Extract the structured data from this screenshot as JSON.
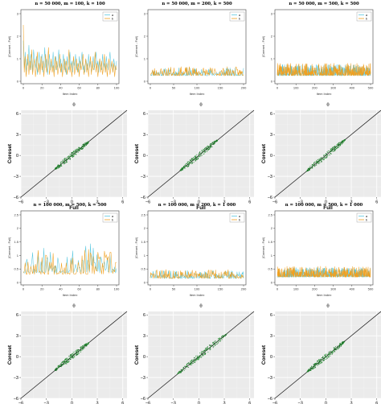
{
  "chart_data": [
    {
      "type": "line",
      "title": "n = 50 000, m = 100, k = 100",
      "xlabel": "Item Index",
      "ylabel": "|Coreset - Full|",
      "xlim": [
        0,
        100
      ],
      "ylim": [
        0,
        3
      ],
      "xticks": [
        "0",
        "20",
        "40",
        "60",
        "80",
        "100"
      ],
      "yticks": [
        "0",
        "1",
        "2",
        "3"
      ],
      "legend": "top-right",
      "series": [
        {
          "name": "a",
          "color": "#5bc8e0",
          "values": [
            1.8,
            0.6,
            1.3,
            0.4,
            1.0,
            0.7,
            1.6,
            0.5,
            1.2,
            0.8,
            0.4,
            1.4,
            0.9,
            0.6,
            1.1,
            0.3,
            0.8,
            1.3,
            0.5,
            0.9,
            1.2,
            0.4,
            0.7,
            1.5,
            0.6,
            1.0,
            0.3,
            0.8,
            1.2,
            0.5,
            0.9,
            0.6,
            1.3,
            0.4,
            0.8,
            1.1,
            0.5,
            0.7,
            1.4,
            0.6,
            1.0,
            0.4,
            0.8,
            1.2,
            0.5,
            0.9,
            0.3,
            1.1,
            0.7,
            0.5,
            1.3,
            0.6,
            0.9,
            0.4,
            1.0,
            0.7,
            1.2,
            0.5,
            0.8,
            0.4,
            1.1,
            0.6,
            0.9,
            1.3,
            0.5,
            0.7,
            0.4,
            1.0,
            0.8,
            0.5,
            1.2,
            0.6,
            0.9,
            0.4,
            0.7,
            1.1,
            0.5,
            0.8,
            1.3,
            0.6,
            0.9,
            0.4,
            1.0,
            0.7,
            0.5,
            1.2,
            0.6,
            0.8,
            0.4,
            1.1,
            0.7,
            0.5,
            0.9,
            1.3,
            0.6,
            0.8,
            0.4,
            1.0,
            0.7,
            0.5,
            0.9
          ]
        },
        {
          "name": "b",
          "color": "#f0a020",
          "values": [
            2.5,
            0.4,
            1.1,
            0.2,
            0.7,
            1.2,
            0.3,
            0.9,
            0.5,
            1.4,
            0.3,
            0.7,
            1.0,
            0.2,
            0.6,
            1.3,
            0.4,
            0.8,
            0.3,
            1.1,
            0.5,
            0.9,
            0.2,
            0.7,
            1.2,
            0.4,
            0.8,
            1.5,
            0.3,
            0.6,
            1.0,
            0.4,
            0.7,
            0.2,
            1.1,
            0.5,
            0.9,
            0.3,
            0.6,
            1.2,
            0.4,
            0.8,
            0.2,
            0.7,
            1.0,
            0.4,
            0.9,
            0.3,
            0.6,
            1.4,
            0.4,
            0.8,
            0.2,
            0.7,
            1.1,
            0.3,
            0.6,
            1.0,
            0.4,
            0.8,
            0.2,
            0.9,
            0.5,
            0.7,
            1.2,
            0.3,
            0.6,
            1.0,
            0.4,
            0.8,
            0.2,
            0.7,
            1.1,
            0.3,
            0.9,
            0.5,
            0.6,
            1.3,
            0.4,
            0.8,
            0.2,
            0.7,
            1.0,
            0.4,
            0.9,
            0.3,
            0.6,
            1.2,
            0.4,
            0.8,
            0.2,
            0.7,
            1.0,
            0.3,
            0.6,
            0.9,
            0.4,
            0.8,
            0.2,
            0.7,
            0.5
          ]
        }
      ]
    },
    {
      "type": "line",
      "title": "n = 50 000, m = 200, k = 500",
      "xlabel": "Item Index",
      "ylabel": "|Coreset - Full|",
      "xlim": [
        0,
        200
      ],
      "ylim": [
        0,
        3
      ],
      "xticks": [
        "0",
        "50",
        "100",
        "150",
        "200"
      ],
      "yticks": [
        "0",
        "1",
        "2",
        "3"
      ],
      "legend": "top-right",
      "series": [
        {
          "name": "a",
          "color": "#5bc8e0",
          "seed": 11,
          "base": 0.25,
          "amp": 0.35,
          "n": 201
        },
        {
          "name": "b",
          "color": "#f0a020",
          "seed": 23,
          "base": 0.25,
          "amp": 0.4,
          "n": 201
        }
      ]
    },
    {
      "type": "line",
      "title": "n = 50 000, m = 500, k = 500",
      "xlabel": "Item Index",
      "ylabel": "|Coreset - Full|",
      "xlim": [
        0,
        500
      ],
      "ylim": [
        0,
        3
      ],
      "xticks": [
        "0",
        "100",
        "200",
        "300",
        "400",
        "500"
      ],
      "yticks": [
        "0",
        "1",
        "2",
        "3"
      ],
      "legend": "top-right",
      "series": [
        {
          "name": "a",
          "color": "#5bc8e0",
          "seed": 37,
          "base": 0.25,
          "amp": 0.5,
          "n": 501
        },
        {
          "name": "b",
          "color": "#f0a020",
          "seed": 41,
          "base": 0.25,
          "amp": 0.55,
          "n": 501
        }
      ]
    },
    {
      "type": "scatter",
      "title": "θ",
      "xlabel": "Full",
      "ylabel": "Coreset",
      "xlim": [
        -6,
        6.5
      ],
      "ylim": [
        -6,
        6.5
      ],
      "xticks": [
        "−6",
        "−3",
        "0",
        "3",
        "6"
      ],
      "yticks": [
        "−6",
        "−3",
        "0",
        "3",
        "6"
      ],
      "grid": true,
      "range": [
        -2.0,
        2.0
      ]
    },
    {
      "type": "scatter",
      "title": "θ",
      "xlabel": "Full",
      "ylabel": "Coreset",
      "xlim": [
        -6,
        6.5
      ],
      "ylim": [
        -6,
        6.5
      ],
      "xticks": [
        "−6",
        "−3",
        "0",
        "3",
        "6"
      ],
      "yticks": [
        "−6",
        "−3",
        "0",
        "3",
        "6"
      ],
      "grid": true,
      "range": [
        -2.2,
        2.2
      ]
    },
    {
      "type": "scatter",
      "title": "θ",
      "xlabel": "Full",
      "ylabel": "Coreset",
      "xlim": [
        -6,
        6.5
      ],
      "ylim": [
        -6,
        6.5
      ],
      "xticks": [
        "−6",
        "−3",
        "0",
        "3",
        "6"
      ],
      "yticks": [
        "−6",
        "−3",
        "0",
        "3",
        "6"
      ],
      "grid": true,
      "range": [
        -2.3,
        2.3
      ]
    },
    {
      "type": "line",
      "title": "n = 100 000, m = 500, k = 500",
      "xlabel": "Item Index",
      "ylabel": "|Coreset - Full|",
      "xlim": [
        0,
        100
      ],
      "ylim": [
        0,
        2.5
      ],
      "xticks": [
        "0",
        "20",
        "40",
        "60",
        "80",
        "100"
      ],
      "yticks": [
        "0",
        "0.5",
        "1",
        "1.5",
        "2",
        "2.5"
      ],
      "legend": "top-right",
      "series": [
        {
          "name": "a",
          "color": "#5bc8e0",
          "seed": 53,
          "base": 0.35,
          "amp": 1.1,
          "n": 101
        },
        {
          "name": "b",
          "color": "#f0a020",
          "seed": 67,
          "base": 0.3,
          "amp": 0.95,
          "n": 101
        }
      ]
    },
    {
      "type": "line",
      "title": "n = 100 000, m = 200, k = 1 000",
      "xlabel": "Item Index",
      "ylabel": "|Coreset - Full|",
      "xlim": [
        0,
        200
      ],
      "ylim": [
        0,
        2.5
      ],
      "xticks": [
        "0",
        "50",
        "100",
        "150",
        "200"
      ],
      "yticks": [
        "0",
        "0.5",
        "1",
        "1.5",
        "2",
        "2.5"
      ],
      "legend": "top-right",
      "series": [
        {
          "name": "a",
          "color": "#5bc8e0",
          "seed": 71,
          "base": 0.15,
          "amp": 0.3,
          "n": 201
        },
        {
          "name": "b",
          "color": "#f0a020",
          "seed": 83,
          "base": 0.15,
          "amp": 0.35,
          "n": 201
        }
      ]
    },
    {
      "type": "line",
      "title": "n = 100 000, m = 500, k = 1 000",
      "xlabel": "Item Index",
      "ylabel": "|Coreset - Full|",
      "xlim": [
        0,
        500
      ],
      "ylim": [
        0,
        2.5
      ],
      "xticks": [
        "0",
        "100",
        "200",
        "300",
        "400",
        "500"
      ],
      "yticks": [
        "0",
        "0.5",
        "1",
        "1.5",
        "2",
        "2.5"
      ],
      "legend": "top-right",
      "series": [
        {
          "name": "a",
          "color": "#5bc8e0",
          "seed": 97,
          "base": 0.2,
          "amp": 0.35,
          "n": 501
        },
        {
          "name": "b",
          "color": "#f0a020",
          "seed": 101,
          "base": 0.2,
          "amp": 0.4,
          "n": 501
        }
      ]
    },
    {
      "type": "scatter",
      "title": "θ",
      "xlabel": "Full",
      "ylabel": "Coreset",
      "xlim": [
        -6,
        6.5
      ],
      "ylim": [
        -6,
        6.5
      ],
      "xticks": [
        "−6",
        "−3",
        "0",
        "3",
        "6"
      ],
      "yticks": [
        "−6",
        "−3",
        "0",
        "3",
        "6"
      ],
      "grid": true,
      "range": [
        -2.0,
        2.0
      ]
    },
    {
      "type": "scatter",
      "title": "θ",
      "xlabel": "Full",
      "ylabel": "Coreset",
      "xlim": [
        -6,
        6.5
      ],
      "ylim": [
        -6,
        6.5
      ],
      "xticks": [
        "−6",
        "−3",
        "0",
        "3",
        "6"
      ],
      "yticks": [
        "−6",
        "−3",
        "0",
        "3",
        "6"
      ],
      "grid": true,
      "range": [
        -2.5,
        3.3
      ]
    },
    {
      "type": "scatter",
      "title": "θ",
      "xlabel": "Full",
      "ylabel": "Coreset",
      "xlim": [
        -6,
        6.5
      ],
      "ylim": [
        -6,
        6.5
      ],
      "xticks": [
        "−6",
        "−3",
        "0",
        "3",
        "6"
      ],
      "yticks": [
        "−6",
        "−3",
        "0",
        "3",
        "6"
      ],
      "grid": true,
      "range": [
        -2.2,
        2.2
      ]
    }
  ]
}
